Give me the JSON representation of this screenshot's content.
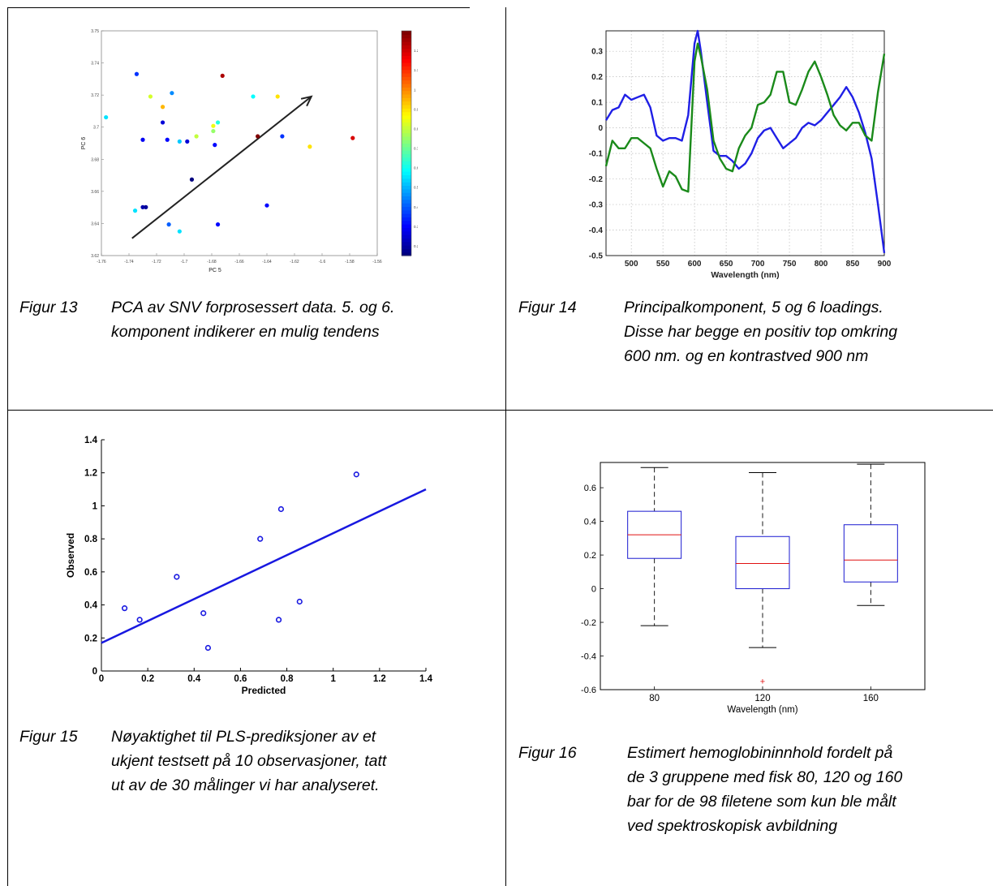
{
  "figures": [
    {
      "number": "Figur 13",
      "caption_lines": [
        "PCA av SNV forprosessert data. 5. og 6.",
        "komponent indikerer en mulig tendens"
      ]
    },
    {
      "number": "Figur 14",
      "caption_lines": [
        "Principalkomponent, 5 og 6 loadings.",
        "Disse har begge en positiv top omkring",
        "600 nm. og en kontrastved 900 nm"
      ]
    },
    {
      "number": "Figur 15",
      "caption_lines": [
        "Nøyaktighet til PLS-prediksjoner av et",
        "ukjent testsett på 10 observasjoner, tatt",
        "ut av de 30 målinger vi har analyseret."
      ]
    },
    {
      "number": "Figur 16",
      "caption_lines": [
        "Estimert hemoglobininnhold fordelt på",
        "de 3 gruppene med fisk 80, 120 og 160",
        "bar for de 98 filetene som kun ble målt",
        "ved spektroskopisk avbildning"
      ]
    }
  ],
  "chart_data": [
    {
      "type": "scatter",
      "xlabel": "PC 5",
      "ylabel": "PC 6",
      "xlim": [
        -1.76,
        -1.58
      ],
      "ylim": [
        3.62,
        3.75
      ],
      "xticks": [
        "-1.76",
        "-1.74",
        "-1.72",
        "-1.7",
        "-1.68",
        "-1.66",
        "-1.64",
        "-1.62",
        "-1.6",
        "-1.58",
        "-1.56"
      ],
      "yticks": [
        "3.62",
        "3.64",
        "3.66",
        "3.68",
        "3.7",
        "3.72",
        "3.74",
        "3.75"
      ],
      "colorbar_ticks": [
        "0.2",
        "0.3",
        "0.4",
        "0.5",
        "0.6",
        "0.7",
        "0.8",
        "0.9",
        "1",
        "1.1",
        "1.2"
      ],
      "colorbar_range": [
        0.15,
        1.3
      ],
      "arrow": {
        "from": [
          -1.74,
          3.63
        ],
        "to": [
          -1.623,
          3.712
        ]
      },
      "points": [
        {
          "x": -1.737,
          "y": 3.725,
          "c": 0.35
        },
        {
          "x": -1.757,
          "y": 3.7,
          "c": 0.55
        },
        {
          "x": -1.728,
          "y": 3.712,
          "c": 0.82
        },
        {
          "x": -1.72,
          "y": 3.706,
          "c": 0.95
        },
        {
          "x": -1.714,
          "y": 3.714,
          "c": 0.45
        },
        {
          "x": -1.72,
          "y": 3.697,
          "c": 0.25
        },
        {
          "x": -1.704,
          "y": 3.686,
          "c": 0.25
        },
        {
          "x": -1.681,
          "y": 3.724,
          "c": 1.25
        },
        {
          "x": -1.661,
          "y": 3.712,
          "c": 0.58
        },
        {
          "x": -1.645,
          "y": 3.712,
          "c": 0.9
        },
        {
          "x": -1.698,
          "y": 3.689,
          "c": 0.8
        },
        {
          "x": -1.687,
          "y": 3.692,
          "c": 0.75
        },
        {
          "x": -1.687,
          "y": 3.695,
          "c": 0.85
        },
        {
          "x": -1.684,
          "y": 3.697,
          "c": 0.62
        },
        {
          "x": -1.733,
          "y": 3.687,
          "c": 0.28
        },
        {
          "x": -1.717,
          "y": 3.687,
          "c": 0.3
        },
        {
          "x": -1.709,
          "y": 3.686,
          "c": 0.52
        },
        {
          "x": -1.686,
          "y": 3.684,
          "c": 0.3
        },
        {
          "x": -1.658,
          "y": 3.689,
          "c": 1.3
        },
        {
          "x": -1.642,
          "y": 3.689,
          "c": 0.35
        },
        {
          "x": -1.624,
          "y": 3.683,
          "c": 0.9
        },
        {
          "x": -1.596,
          "y": 3.688,
          "c": 1.2
        },
        {
          "x": -1.701,
          "y": 3.664,
          "c": 0.15
        },
        {
          "x": -1.738,
          "y": 3.646,
          "c": 0.55
        },
        {
          "x": -1.733,
          "y": 3.648,
          "c": 0.2
        },
        {
          "x": -1.731,
          "y": 3.648,
          "c": 0.18
        },
        {
          "x": -1.716,
          "y": 3.638,
          "c": 0.4
        },
        {
          "x": -1.709,
          "y": 3.634,
          "c": 0.55
        },
        {
          "x": -1.684,
          "y": 3.638,
          "c": 0.3
        },
        {
          "x": -1.652,
          "y": 3.649,
          "c": 0.3
        }
      ]
    },
    {
      "type": "line",
      "xlabel": "Wavelength (nm)",
      "ylabel": "",
      "xlim": [
        460,
        900
      ],
      "ylim": [
        -0.5,
        0.38
      ],
      "xticks": [
        500,
        550,
        600,
        650,
        700,
        750,
        800,
        850,
        900
      ],
      "yticks": [
        0.3,
        0.2,
        0.1,
        0,
        -0.1,
        -0.2,
        -0.3,
        -0.4,
        -0.5
      ],
      "grid": true,
      "series": [
        {
          "color": "#1f1fe6",
          "x": [
            460,
            470,
            480,
            490,
            500,
            510,
            520,
            530,
            540,
            550,
            560,
            570,
            580,
            590,
            600,
            605,
            610,
            620,
            630,
            640,
            650,
            660,
            670,
            680,
            690,
            700,
            710,
            720,
            730,
            740,
            750,
            760,
            770,
            780,
            790,
            800,
            810,
            820,
            830,
            840,
            850,
            860,
            870,
            880,
            890,
            900
          ],
          "y": [
            0.03,
            0.07,
            0.08,
            0.13,
            0.11,
            0.12,
            0.13,
            0.08,
            -0.03,
            -0.05,
            -0.04,
            -0.04,
            -0.05,
            0.05,
            0.33,
            0.38,
            0.3,
            0.1,
            -0.09,
            -0.11,
            -0.11,
            -0.13,
            -0.16,
            -0.14,
            -0.1,
            -0.04,
            -0.01,
            0.0,
            -0.04,
            -0.08,
            -0.06,
            -0.04,
            0.0,
            0.02,
            0.01,
            0.03,
            0.06,
            0.09,
            0.12,
            0.16,
            0.12,
            0.06,
            -0.02,
            -0.12,
            -0.3,
            -0.49
          ]
        },
        {
          "color": "#1a8a1a",
          "x": [
            460,
            470,
            480,
            490,
            500,
            510,
            520,
            530,
            540,
            550,
            560,
            570,
            580,
            590,
            600,
            605,
            610,
            620,
            630,
            640,
            650,
            660,
            670,
            680,
            690,
            700,
            710,
            720,
            730,
            740,
            750,
            760,
            770,
            780,
            790,
            800,
            810,
            820,
            830,
            840,
            850,
            860,
            870,
            880,
            890,
            900
          ],
          "y": [
            -0.15,
            -0.05,
            -0.08,
            -0.08,
            -0.04,
            -0.04,
            -0.06,
            -0.08,
            -0.16,
            -0.23,
            -0.17,
            -0.19,
            -0.24,
            -0.25,
            0.26,
            0.33,
            0.28,
            0.15,
            -0.05,
            -0.12,
            -0.16,
            -0.17,
            -0.08,
            -0.03,
            0.0,
            0.09,
            0.1,
            0.13,
            0.22,
            0.22,
            0.1,
            0.09,
            0.15,
            0.22,
            0.26,
            0.2,
            0.13,
            0.05,
            0.01,
            -0.01,
            0.02,
            0.02,
            -0.03,
            -0.05,
            0.14,
            0.29
          ]
        }
      ]
    },
    {
      "type": "scatter",
      "xlabel": "Predicted",
      "ylabel": "Observed",
      "xlim": [
        0,
        1.4
      ],
      "ylim": [
        0,
        1.4
      ],
      "xticks": [
        "0",
        "0.2",
        "0.4",
        "0.6",
        "0.8",
        "1",
        "1.2",
        "1.4"
      ],
      "yticks": [
        "0",
        "0.2",
        "0.4",
        "0.6",
        "0.8",
        "1",
        "1.2",
        "1.4"
      ],
      "fit_line": {
        "x": [
          0,
          1.4
        ],
        "y": [
          0.17,
          1.1
        ]
      },
      "points": [
        {
          "x": 0.1,
          "y": 0.38
        },
        {
          "x": 0.165,
          "y": 0.31
        },
        {
          "x": 0.325,
          "y": 0.57
        },
        {
          "x": 0.44,
          "y": 0.35
        },
        {
          "x": 0.46,
          "y": 0.14
        },
        {
          "x": 0.685,
          "y": 0.8
        },
        {
          "x": 0.765,
          "y": 0.31
        },
        {
          "x": 0.775,
          "y": 0.98
        },
        {
          "x": 0.855,
          "y": 0.42
        },
        {
          "x": 1.1,
          "y": 1.19
        }
      ]
    },
    {
      "type": "box",
      "xlabel": "Wavelength (nm)",
      "ylabel": "",
      "categories": [
        "80",
        "120",
        "160"
      ],
      "ylim": [
        -0.6,
        0.75
      ],
      "yticks": [
        "0.6",
        "0.4",
        "0.2",
        "0",
        "-0.2",
        "-0.4",
        "-0.6"
      ],
      "boxes": [
        {
          "label": "80",
          "whisker_low": -0.22,
          "q1": 0.18,
          "median": 0.32,
          "q3": 0.46,
          "whisker_high": 0.72,
          "outliers": []
        },
        {
          "label": "120",
          "whisker_low": -0.35,
          "q1": 0.0,
          "median": 0.15,
          "q3": 0.31,
          "whisker_high": 0.69,
          "outliers": [
            -0.55
          ]
        },
        {
          "label": "160",
          "whisker_low": -0.1,
          "q1": 0.04,
          "median": 0.17,
          "q3": 0.38,
          "whisker_high": 0.74,
          "outliers": []
        }
      ]
    }
  ]
}
